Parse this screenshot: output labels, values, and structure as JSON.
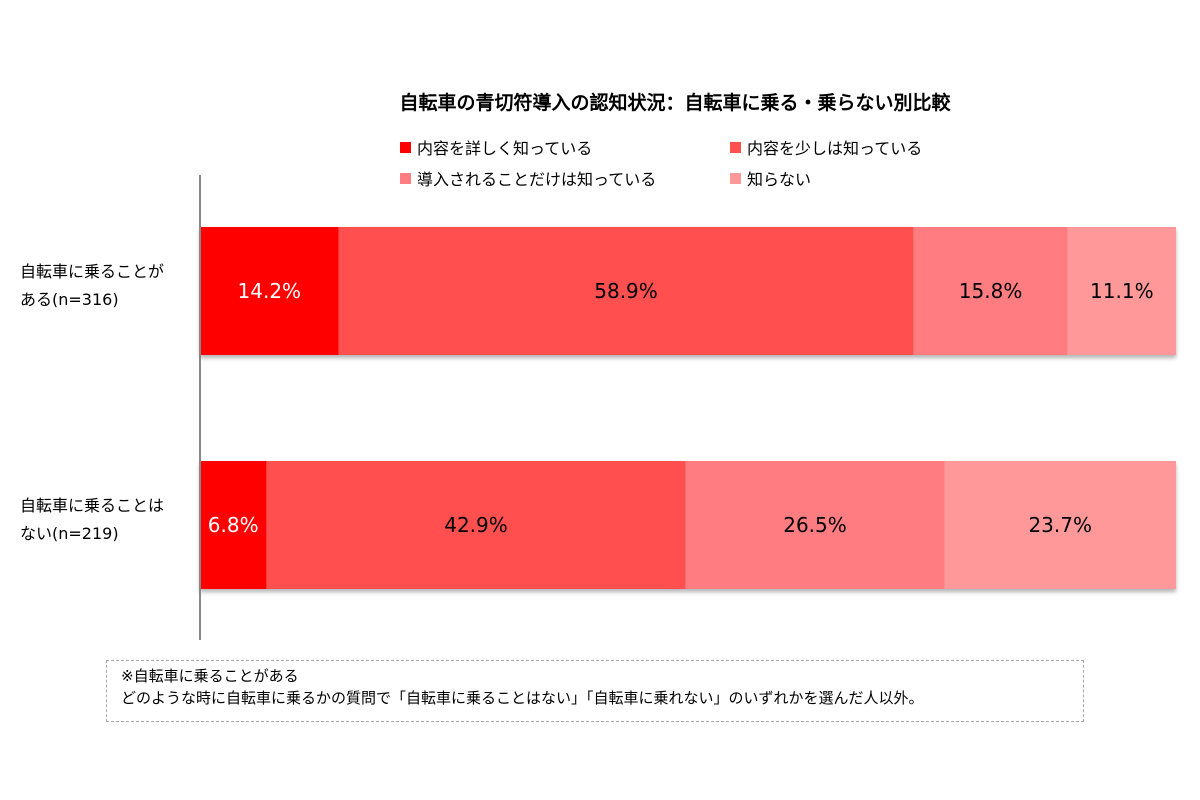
{
  "chart_data": {
    "type": "bar",
    "orientation": "horizontal",
    "stacked": true,
    "title": "自転車の青切符導入の認知状況：自転車に乗る・乗らない別比較",
    "categories": [
      "自転車に乗ることがある(n=316)",
      "自転車に乗ることはない(n=219)"
    ],
    "category_lines": [
      [
        "自転車に乗ることが",
        "ある(n=316)"
      ],
      [
        "自転車に乗ることは",
        "ない(n=219)"
      ]
    ],
    "series": [
      {
        "name": "内容を詳しく知っている",
        "color": "#FF0000",
        "label_color": "#FFFFFF",
        "values": [
          14.2,
          6.8
        ]
      },
      {
        "name": "内容を少しは知っている",
        "color": "#FF5050",
        "label_color": "#000000",
        "values": [
          58.9,
          42.9
        ]
      },
      {
        "name": "導入されることだけは知っている",
        "color": "#FF7C80",
        "label_color": "#000000",
        "values": [
          15.8,
          26.5
        ]
      },
      {
        "name": "知らない",
        "color": "#FF9999",
        "label_color": "#000000",
        "values": [
          11.1,
          23.7
        ]
      }
    ],
    "data_labels": [
      [
        "14.2%",
        "58.9%",
        "15.8%",
        "11.1%"
      ],
      [
        "6.8%",
        "42.9%",
        "26.5%",
        "23.7%"
      ]
    ],
    "xlim": [
      0,
      100
    ],
    "grid": false,
    "legend_position": "top"
  },
  "note": {
    "line1": "※自転車に乗ることがある",
    "line2": "どのような時に自転車に乗るかの質問で「自転車に乗ることはない」「自転車に乗れない」のいずれかを選んだ人以外。"
  }
}
